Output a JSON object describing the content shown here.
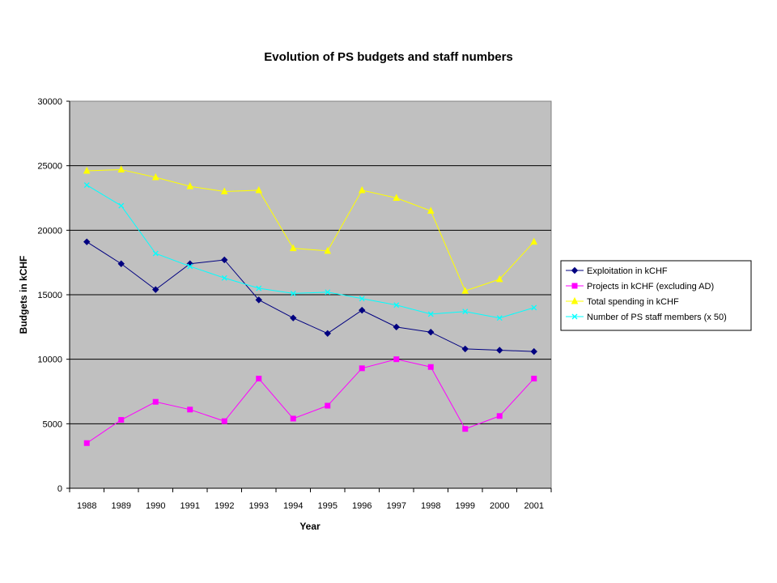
{
  "chart_data": {
    "type": "line",
    "title": "Evolution of PS budgets and staff numbers",
    "xlabel": "Year",
    "ylabel": "Budgets in kCHF",
    "categories": [
      "1988",
      "1989",
      "1990",
      "1991",
      "1992",
      "1993",
      "1994",
      "1995",
      "1996",
      "1997",
      "1998",
      "1999",
      "2000",
      "2001"
    ],
    "ylim": [
      0,
      30000
    ],
    "yticks": [
      "0",
      "5000",
      "10000",
      "15000",
      "20000",
      "25000",
      "30000"
    ],
    "grid": true,
    "legend_position": "right",
    "plot_background": "#c0c0c0",
    "series": [
      {
        "name": "Exploitation in kCHF",
        "color": "#000080",
        "marker": "diamond",
        "values": [
          19100,
          17400,
          15400,
          17400,
          17700,
          14600,
          13200,
          12000,
          13800,
          12500,
          12100,
          10800,
          10700,
          10600
        ]
      },
      {
        "name": "Projects in kCHF (excluding AD)",
        "color": "#ff00ff",
        "marker": "square",
        "values": [
          3500,
          5300,
          6700,
          6100,
          5200,
          8500,
          5400,
          6400,
          9300,
          10000,
          9400,
          4600,
          5600,
          8500
        ]
      },
      {
        "name": "Total spending in kCHF",
        "color": "#ffff00",
        "marker": "triangle",
        "values": [
          24600,
          24700,
          24100,
          23400,
          23000,
          23100,
          18600,
          18400,
          23100,
          22500,
          21500,
          15300,
          16200,
          19100
        ]
      },
      {
        "name": "Number of PS staff members (x 50)",
        "color": "#00ffff",
        "marker": "x",
        "values": [
          23500,
          21900,
          18200,
          17200,
          16300,
          15500,
          15100,
          15200,
          14700,
          14200,
          13500,
          13700,
          13200,
          14000
        ]
      }
    ]
  }
}
